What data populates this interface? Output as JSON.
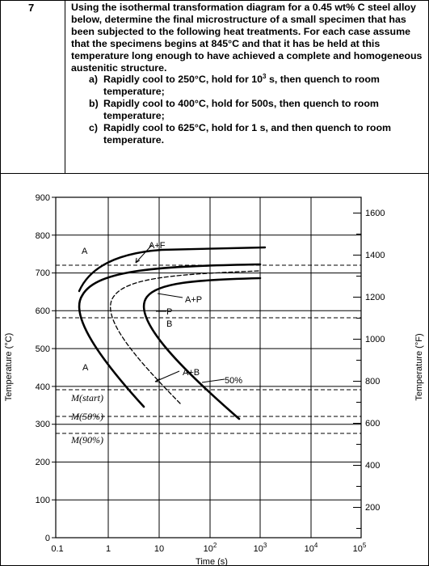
{
  "question": {
    "number": "7",
    "stem_1": "Using the isothermal transformation diagram for a 0.45 wt% C steel alloy below, determine the final microstructure of a small specimen that has been subjected to the following heat treatments.  For each case assume that the specimens begins at 845°C and that it has be held at this temperature long enough to have achieved a complete and homogeneous austenitic structure.",
    "parts": [
      {
        "label": "a)",
        "before": "Rapidly cool to 250°C, hold for 10",
        "sup": "3",
        "after": " s, then quench to room temperature;"
      },
      {
        "label": "b)",
        "before": "Rapidly cool to 400°C, hold for 500s, then quench to room temperature;",
        "sup": "",
        "after": ""
      },
      {
        "label": "c)",
        "before": "Rapidly cool to 625°C, hold for 1 s, and then quench to room temperature.",
        "sup": "",
        "after": ""
      }
    ]
  },
  "diagram": {
    "y_left_ticks": [
      "900",
      "800",
      "700",
      "600",
      "500",
      "400",
      "300",
      "200",
      "100",
      "0"
    ],
    "y_left_label": "Temperature (°C)",
    "y_right_ticks": [
      "1600",
      "1400",
      "1200",
      "1000",
      "800",
      "600",
      "400",
      "200"
    ],
    "y_right_label": "Temperature (°F)",
    "x_tick_base": [
      "0.1",
      "1",
      "10",
      "10",
      "10",
      "10",
      "10"
    ],
    "x_tick_exp": [
      "",
      "",
      "",
      "2",
      "3",
      "4",
      "5"
    ],
    "x_label": "Time (s)",
    "region_labels": {
      "a_top": "A",
      "a_ferrite": "A+F",
      "a_pearlite": "A+P",
      "p": "P",
      "b": "B",
      "a_bainite": "A+B",
      "a_bottom": "A",
      "fifty": "50%"
    },
    "martensite_lines": [
      "M(start)",
      "M(50%)",
      "M(90%)"
    ]
  }
}
